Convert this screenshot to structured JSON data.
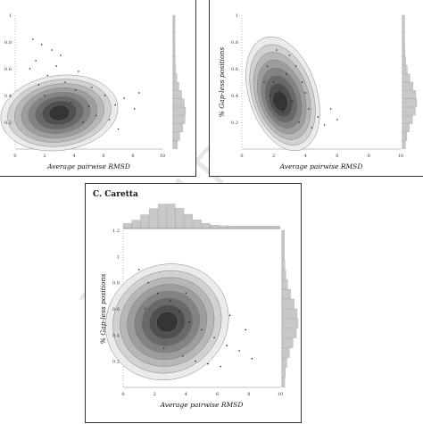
{
  "watermark": "Journal Pre-proofs",
  "chart_data": [
    {
      "type": "scatter",
      "panel": "top-left",
      "title": "",
      "xlabel": "Average pairwise RMSD",
      "ylabel": "",
      "xlim": [
        0,
        10
      ],
      "ylim": [
        0,
        1
      ],
      "xticks": [
        "0",
        "2",
        "4",
        "6",
        "8",
        "10"
      ],
      "yticks": [
        "0.2",
        "0.4",
        "0.6",
        "0.8",
        "1"
      ],
      "density_peak": {
        "x": 3,
        "y": 0.27
      },
      "marginal_y": "histogram-right",
      "points": [
        [
          1.2,
          0.82
        ],
        [
          1.8,
          0.78
        ],
        [
          2.5,
          0.74
        ],
        [
          1.0,
          0.6
        ],
        [
          1.4,
          0.66
        ],
        [
          2.2,
          0.55
        ],
        [
          3.4,
          0.5
        ],
        [
          4.1,
          0.44
        ],
        [
          5.2,
          0.46
        ],
        [
          6.1,
          0.4
        ],
        [
          6.8,
          0.33
        ],
        [
          7.4,
          0.38
        ],
        [
          8.1,
          0.3
        ],
        [
          4.6,
          0.2
        ],
        [
          5.5,
          0.25
        ],
        [
          2.0,
          0.4
        ],
        [
          3.8,
          0.35
        ],
        [
          6.4,
          0.22
        ],
        [
          5.0,
          0.32
        ],
        [
          7.0,
          0.15
        ],
        [
          2.8,
          0.62
        ],
        [
          3.1,
          0.7
        ],
        [
          4.3,
          0.58
        ],
        [
          1.6,
          0.48
        ],
        [
          8.4,
          0.42
        ]
      ]
    },
    {
      "type": "scatter",
      "panel": "top-right",
      "title": "",
      "xlabel": "Average pairwise RMSD",
      "ylabel": "% Gap-less positions",
      "xlim": [
        0,
        10
      ],
      "ylim": [
        0,
        1
      ],
      "xticks": [
        "0",
        "2",
        "4",
        "6",
        "8",
        "10"
      ],
      "yticks": [
        "0.2",
        "0.4",
        "0.6",
        "0.8",
        "1"
      ],
      "density_peak": {
        "x": 2.4,
        "y": 0.35
      },
      "marginal_y": "histogram-right",
      "points": [
        [
          1.6,
          0.62
        ],
        [
          2.0,
          0.5
        ],
        [
          2.4,
          0.44
        ],
        [
          3.0,
          0.7
        ],
        [
          3.4,
          0.62
        ],
        [
          3.8,
          0.5
        ],
        [
          4.2,
          0.3
        ],
        [
          4.8,
          0.24
        ],
        [
          5.2,
          0.18
        ],
        [
          2.6,
          0.28
        ],
        [
          1.8,
          0.4
        ],
        [
          3.2,
          0.36
        ],
        [
          4.0,
          0.42
        ],
        [
          5.6,
          0.3
        ],
        [
          2.2,
          0.74
        ],
        [
          3.6,
          0.2
        ],
        [
          4.4,
          0.16
        ],
        [
          6.0,
          0.22
        ],
        [
          1.4,
          0.5
        ],
        [
          2.8,
          0.56
        ]
      ]
    },
    {
      "type": "scatter",
      "panel": "bottom",
      "title": "C. Caretta",
      "xlabel": "Average pairwise RMSD",
      "ylabel": "% Gap-less positions",
      "xlim": [
        0,
        10
      ],
      "ylim": [
        0,
        1.2
      ],
      "xticks": [
        "0",
        "2",
        "4",
        "6",
        "8",
        "10"
      ],
      "yticks": [
        "0.2",
        "0.4",
        "0.6",
        "0.8",
        "1",
        "1.2"
      ],
      "density_peak": {
        "x": 2.8,
        "y": 0.5
      },
      "marginal_x": "histogram-top",
      "marginal_y": "histogram-right",
      "points": [
        [
          1.0,
          0.9
        ],
        [
          1.6,
          0.8
        ],
        [
          2.2,
          0.72
        ],
        [
          3.0,
          0.66
        ],
        [
          3.6,
          0.58
        ],
        [
          4.2,
          0.5
        ],
        [
          5.0,
          0.44
        ],
        [
          5.8,
          0.38
        ],
        [
          6.6,
          0.32
        ],
        [
          7.4,
          0.28
        ],
        [
          8.2,
          0.22
        ],
        [
          2.6,
          0.3
        ],
        [
          3.8,
          0.24
        ],
        [
          4.6,
          0.2
        ],
        [
          5.4,
          0.18
        ],
        [
          6.2,
          0.16
        ],
        [
          1.4,
          0.6
        ],
        [
          7.8,
          0.44
        ],
        [
          6.8,
          0.55
        ],
        [
          4.0,
          0.72
        ]
      ]
    }
  ]
}
